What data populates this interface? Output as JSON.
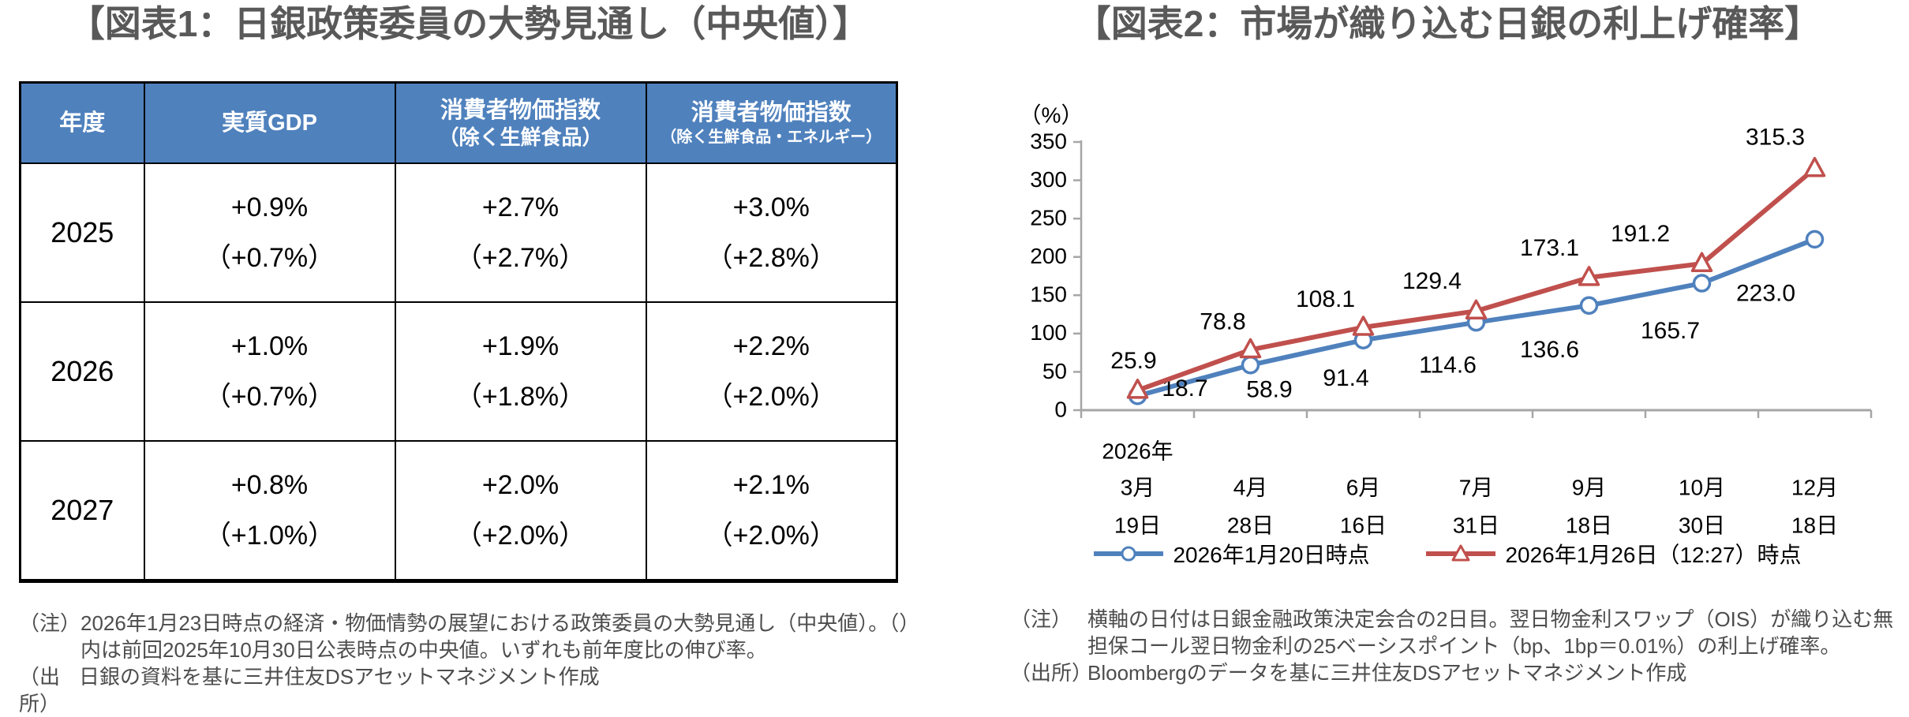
{
  "colors": {
    "accent_blue": "#4F81BD",
    "accent_red": "#C0504D",
    "title_gray": "#595959",
    "axis_gray": "#A6A6A6",
    "note_gray": "#4D4D4D",
    "table_border": "#000000"
  },
  "figure1": {
    "title": "【図表1：日銀政策委員の大勢見通し（中央値）】",
    "note_label": "（注）",
    "note_text": "2026年1月23日時点の経済・物価情勢の展望における政策委員の大勢見通し（中央値）。（）内は前回2025年10月30日公表時点の中央値。いずれも前年度比の伸び率。",
    "source_label": "（出所）",
    "source_text": "日銀の資料を基に三井住友DSアセットマネジメント作成"
  },
  "figure2": {
    "title": "【図表2：市場が織り込む日銀の利上げ確率】",
    "note_label": "（注）",
    "note_text": "横軸の日付は日銀金融政策決定会合の2日目。翌日物金利スワップ（OIS）が織り込む無担保コール翌日物金利の25ベーシスポイント（bp、1bp＝0.01%）の利上げ確率。",
    "source_label": "（出所）",
    "source_text": "Bloombergのデータを基に三井住友DSアセットマネジメント作成"
  },
  "chart_data": [
    {
      "type": "table",
      "title": "日銀政策委員の大勢見通し（中央値）",
      "columns": [
        {
          "line1": "年度",
          "line2": ""
        },
        {
          "line1": "実質GDP",
          "line2": ""
        },
        {
          "line1": "消費者物価指数",
          "line2": "（除く生鮮食品）"
        },
        {
          "line1": "消費者物価指数",
          "line2": "（除く生鮮食品・エネルギー）"
        }
      ],
      "rows": [
        {
          "year": "2025",
          "cells": [
            {
              "value": "+0.9%",
              "prev": "（+0.7%）"
            },
            {
              "value": "+2.7%",
              "prev": "（+2.7%）"
            },
            {
              "value": "+3.0%",
              "prev": "（+2.8%）"
            }
          ]
        },
        {
          "year": "2026",
          "cells": [
            {
              "value": "+1.0%",
              "prev": "（+0.7%）"
            },
            {
              "value": "+1.9%",
              "prev": "（+1.8%）"
            },
            {
              "value": "+2.2%",
              "prev": "（+2.0%）"
            }
          ]
        },
        {
          "year": "2027",
          "cells": [
            {
              "value": "+0.8%",
              "prev": "（+1.0%）"
            },
            {
              "value": "+2.0%",
              "prev": "（+2.0%）"
            },
            {
              "value": "+2.1%",
              "prev": "（+2.0%）"
            }
          ]
        }
      ]
    },
    {
      "type": "line",
      "title": "市場が織り込む日銀の利上げ確率",
      "unit_label": "（%）",
      "year_label": "2026年",
      "categories": [
        {
          "month": "3月",
          "day": "19日"
        },
        {
          "month": "4月",
          "day": "28日"
        },
        {
          "month": "6月",
          "day": "16日"
        },
        {
          "month": "7月",
          "day": "31日"
        },
        {
          "month": "9月",
          "day": "18日"
        },
        {
          "month": "10月",
          "day": "30日"
        },
        {
          "month": "12月",
          "day": "18日"
        }
      ],
      "ylim": [
        0,
        350
      ],
      "ytick_step": 50,
      "grid": false,
      "legend_position": "bottom",
      "series": [
        {
          "name": "2026年1月20日時点",
          "color": "#4F81BD",
          "marker": "circle",
          "values": [
            18.7,
            58.9,
            91.4,
            114.6,
            136.6,
            165.7,
            223.0
          ],
          "label_offsets": [
            [
              60,
              -8
            ],
            [
              24,
              33
            ],
            [
              -22,
              50
            ],
            [
              -36,
              56
            ],
            [
              -50,
              58
            ],
            [
              -40,
              62
            ],
            [
              -62,
              70
            ]
          ]
        },
        {
          "name": "2026年1月26日（12:27）時点",
          "color": "#C0504D",
          "marker": "triangle",
          "values": [
            25.9,
            78.8,
            108.1,
            129.4,
            173.1,
            191.2,
            315.3
          ],
          "label_offsets": [
            [
              -5,
              -36
            ],
            [
              -35,
              -34
            ],
            [
              -48,
              -34
            ],
            [
              -56,
              -36
            ],
            [
              -50,
              -36
            ],
            [
              -78,
              -36
            ],
            [
              -50,
              -38
            ]
          ]
        }
      ]
    }
  ]
}
